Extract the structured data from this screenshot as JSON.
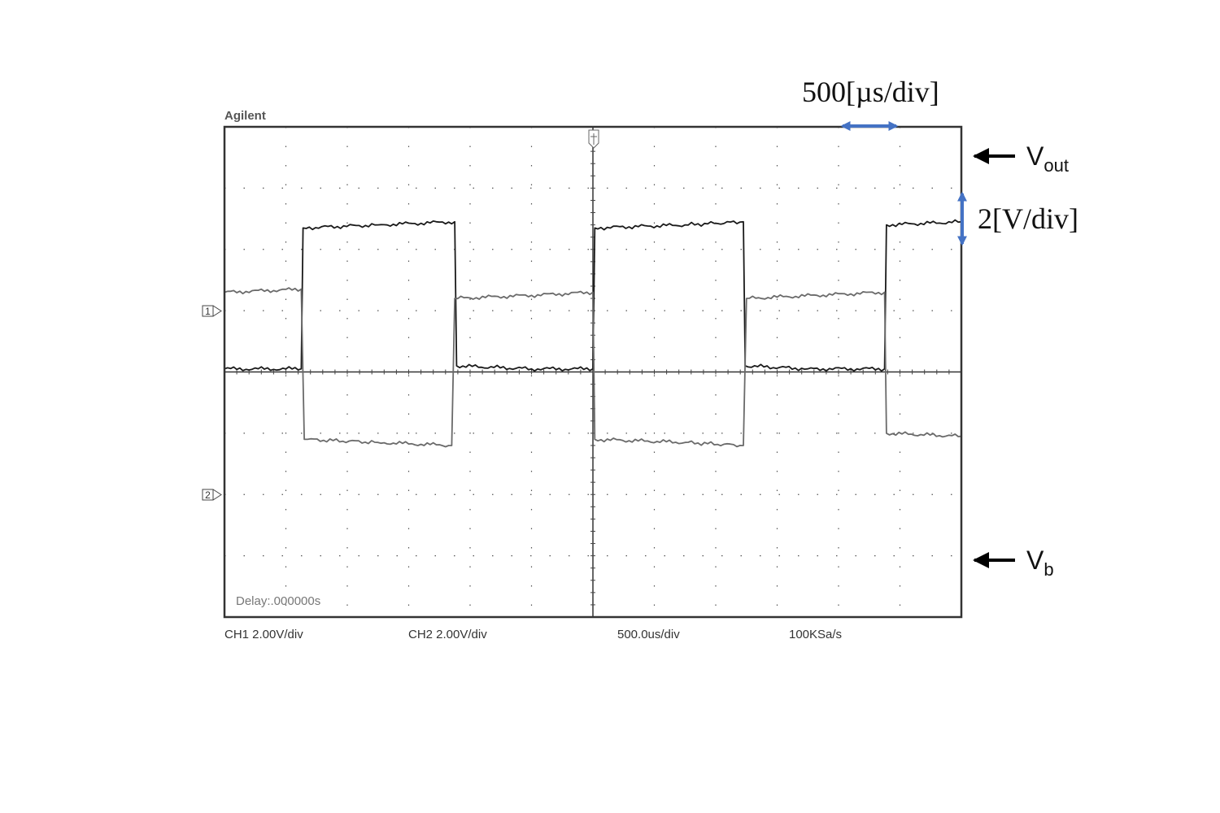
{
  "scope": {
    "brand": "Agilent",
    "delay": "Delay:.000000s",
    "ch1_scale": "CH1 2.00V/div",
    "ch2_scale": "CH2 2.00V/div",
    "timebase": "500.0us/div",
    "sample_rate": "100KSa/s",
    "ch1_marker": "1",
    "ch2_marker": "2"
  },
  "annotations": {
    "time_scale": "500[µs/div]",
    "volt_scale": "2[V/div]",
    "vout_main": "V",
    "vout_sub": "out",
    "vb_main": "V",
    "vb_sub": "b",
    "arrow_color": "#4472c4"
  },
  "chart_data": {
    "type": "line",
    "grid": true,
    "x_divisions": 12,
    "y_divisions": 8,
    "x_unit": "div (500 us/div)",
    "y_unit": "div (2 V/div)",
    "xlim": [
      0,
      12
    ],
    "ylim": [
      -4,
      4
    ],
    "series": [
      {
        "name": "Vout",
        "channel": "CH1",
        "color": "#1a1a1a",
        "points": [
          [
            0,
            0.05
          ],
          [
            1.25,
            0.05
          ],
          [
            1.28,
            2.35
          ],
          [
            2.5,
            2.4
          ],
          [
            3.75,
            2.45
          ],
          [
            3.78,
            0.1
          ],
          [
            5.0,
            0.05
          ],
          [
            6.0,
            0.05
          ],
          [
            6.03,
            2.35
          ],
          [
            7.5,
            2.4
          ],
          [
            8.45,
            2.45
          ],
          [
            8.48,
            0.1
          ],
          [
            9.5,
            0.05
          ],
          [
            10.75,
            0.05
          ],
          [
            10.78,
            2.4
          ],
          [
            12,
            2.45
          ]
        ]
      },
      {
        "name": "Vb",
        "channel": "CH2",
        "color": "#6a6a6a",
        "points": [
          [
            0,
            1.3
          ],
          [
            1.25,
            1.35
          ],
          [
            1.3,
            -1.1
          ],
          [
            2.5,
            -1.15
          ],
          [
            3.7,
            -1.2
          ],
          [
            3.75,
            1.2
          ],
          [
            5.0,
            1.25
          ],
          [
            6.0,
            1.3
          ],
          [
            6.03,
            -1.1
          ],
          [
            7.5,
            -1.15
          ],
          [
            8.45,
            -1.2
          ],
          [
            8.5,
            1.2
          ],
          [
            10.75,
            1.3
          ],
          [
            10.78,
            -1.0
          ],
          [
            12,
            -1.05
          ]
        ]
      }
    ]
  }
}
